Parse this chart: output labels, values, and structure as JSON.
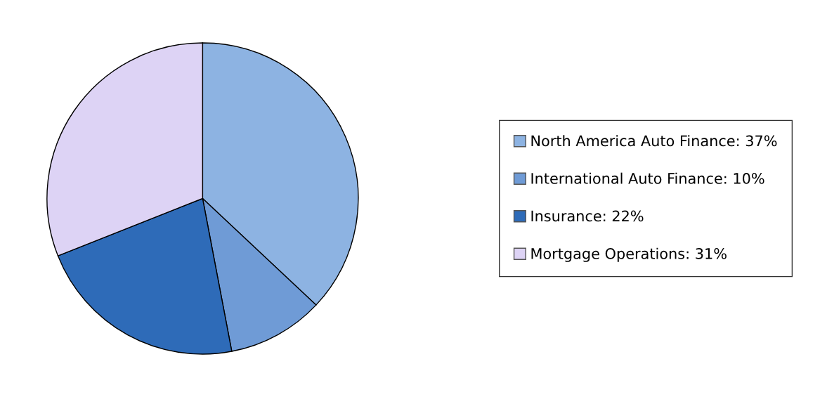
{
  "chart_data": {
    "type": "pie",
    "categories": [
      "North America Auto Finance: 37%",
      "International Auto Finance: 10%",
      "Insurance: 22%",
      "Mortgage Operations: 31%"
    ],
    "values": [
      37,
      10,
      22,
      31
    ],
    "colors": [
      "#8db3e2",
      "#6f9bd6",
      "#2e6bb8",
      "#ddd3f5"
    ],
    "legend": "right"
  }
}
